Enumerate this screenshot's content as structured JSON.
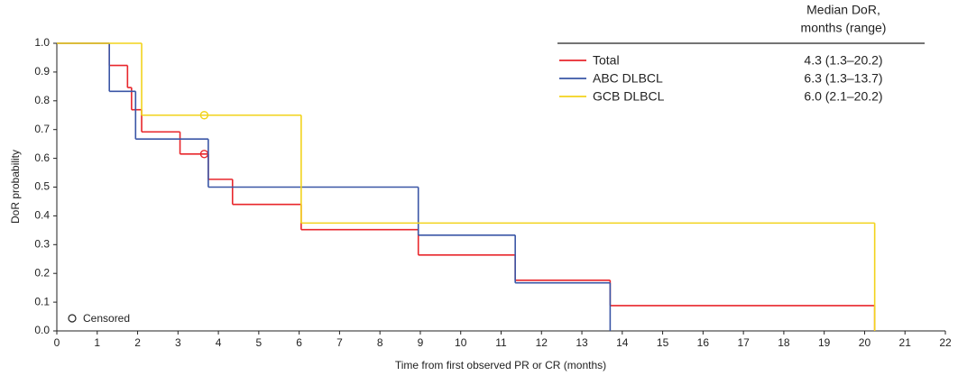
{
  "chart_data": {
    "type": "step",
    "x_label": "Time from first observed PR or CR (months)",
    "y_label": "DoR probability",
    "xlim": [
      0,
      22
    ],
    "xticks": [
      0,
      1,
      2,
      3,
      4,
      5,
      6,
      7,
      8,
      9,
      10,
      11,
      12,
      13,
      14,
      15,
      16,
      17,
      18,
      19,
      20,
      21,
      22
    ],
    "ylim": [
      0,
      1
    ],
    "yticks": [
      {
        "value": 0,
        "label": "0.0"
      },
      0.1,
      0.2,
      0.3,
      0.4,
      0.5,
      0.6,
      0.7,
      0.8,
      0.9,
      {
        "value": 1,
        "label": "1.0"
      }
    ],
    "legend_header": [
      "Median DoR,",
      "months (range)"
    ],
    "series": [
      {
        "name": "Total",
        "color": "#e8262b",
        "median": "4.3 (1.3–20.2)",
        "x": [
          0,
          1.3,
          1.75,
          1.85,
          2.1,
          3.05,
          3.75,
          4.35,
          6.05,
          8.95,
          11.35,
          13.7,
          20.25
        ],
        "values": [
          1.0,
          0.923,
          0.846,
          0.769,
          0.692,
          0.615,
          0.527,
          0.44,
          0.352,
          0.264,
          0.176,
          0.088,
          0
        ],
        "censored": {
          "x": [
            3.65
          ],
          "values": [
            0.615
          ]
        }
      },
      {
        "name": "ABC DLBCL",
        "color": "#3a56a6",
        "median": "6.3 (1.3–13.7)",
        "x": [
          0,
          1.3,
          1.95,
          3.75,
          8.95,
          11.35,
          13.7
        ],
        "values": [
          1.0,
          0.833,
          0.667,
          0.5,
          0.333,
          0.167,
          0
        ]
      },
      {
        "name": "GCB DLBCL",
        "color": "#f2d31b",
        "median": "6.0 (2.1–20.2)",
        "x": [
          0,
          2.1,
          6.05,
          20.25
        ],
        "values": [
          1.0,
          0.75,
          0.375,
          0
        ],
        "censored": {
          "x": [
            3.65
          ],
          "values": [
            0.75
          ]
        }
      }
    ],
    "censored_label": "Censored"
  }
}
